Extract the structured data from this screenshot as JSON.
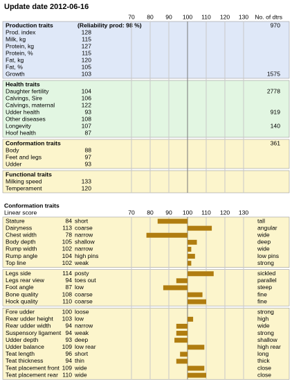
{
  "title": "Update date 2012-06-16",
  "axis": {
    "lim": [
      70,
      130
    ],
    "ticks": [
      70,
      80,
      90,
      100,
      110,
      120,
      130
    ],
    "baseline": 100
  },
  "dtrs_header": "No. of dtrs",
  "index_sections": [
    {
      "name": "Production traits",
      "note": "(Reliability prod: 98 %)",
      "dtrs": "970",
      "bg": "#dfe8f8",
      "text_color": "#1a4fa0",
      "bar_color": "#1f5f9c",
      "rows": [
        {
          "label": "Prod. index",
          "value": 128
        },
        {
          "label": "Milk, kg",
          "value": 115
        },
        {
          "label": "Protein, kg",
          "value": 127
        },
        {
          "label": "Protein, %",
          "value": 115
        },
        {
          "label": "Fat, kg",
          "value": 120
        },
        {
          "label": "Fat, %",
          "value": 105
        },
        {
          "label": "Growth",
          "value": 103,
          "dtrs": "1575"
        }
      ]
    },
    {
      "name": "Health traits",
      "bg": "#e2f6e2",
      "text_color": "#2d6a2d",
      "bar_color": "#2f7a30",
      "rows": [
        {
          "label": "Daughter fertility",
          "value": 104,
          "dtrs": "2778"
        },
        {
          "label": "Calvings, Sire",
          "value": 106
        },
        {
          "label": "Calvings, maternal",
          "value": 122
        },
        {
          "label": "Udder health",
          "value": 93,
          "dtrs": "919"
        },
        {
          "label": "Other diseases",
          "value": 108
        },
        {
          "label": "Longevity",
          "value": 107,
          "dtrs": "140"
        },
        {
          "label": "Hoof health",
          "value": 87
        }
      ]
    },
    {
      "name": "Conformation traits",
      "dtrs": "361",
      "bg": "#fcf5cc",
      "text_color": "#8b5a00",
      "bar_color": "#b07d10",
      "rows": [
        {
          "label": "Body",
          "value": 88
        },
        {
          "label": "Feet and legs",
          "value": 97
        },
        {
          "label": "Udder",
          "value": 93
        }
      ]
    },
    {
      "name": "Functional traits",
      "bg": "#fcf5cc",
      "text_color": "#8b5a00",
      "bar_color": "#b07d10",
      "rows": [
        {
          "label": "Milking speed",
          "value": 133
        },
        {
          "label": "Temperament",
          "value": 120
        }
      ]
    }
  ],
  "linear": {
    "title": "Conformation traits",
    "subtitle": "Linear score",
    "bg": "#fcf5cc",
    "text_color": "#8b5a00",
    "bar_color": "#b07d10",
    "groups": [
      [
        {
          "label": "Stature",
          "value": 84,
          "low": "short",
          "high": "tall"
        },
        {
          "label": "Dairyness",
          "value": 113,
          "low": "coarse",
          "high": "angular"
        },
        {
          "label": "Chest width",
          "value": 78,
          "low": "narrow",
          "high": "wide"
        },
        {
          "label": "Body depth",
          "value": 105,
          "low": "shallow",
          "high": "deep"
        },
        {
          "label": "Rump width",
          "value": 102,
          "low": "narrow",
          "high": "wide"
        },
        {
          "label": "Rump angle",
          "value": 104,
          "low": "high pins",
          "high": "low pins"
        },
        {
          "label": "Top line",
          "value": 102,
          "low": "weak",
          "high": "strong"
        }
      ],
      [
        {
          "label": "Legs side",
          "value": 114,
          "low": "posty",
          "high": "sickled"
        },
        {
          "label": "Legs rear view",
          "value": 94,
          "low": "toes out",
          "high": "parallel"
        },
        {
          "label": "Foot angle",
          "value": 87,
          "low": "low",
          "high": "steep"
        },
        {
          "label": "Bone quality",
          "value": 108,
          "low": "coarse",
          "high": "fine"
        },
        {
          "label": "Hock quality",
          "value": 110,
          "low": "coarse",
          "high": "fine"
        }
      ],
      [
        {
          "label": "Fore udder",
          "value": 100,
          "low": "loose",
          "high": "strong"
        },
        {
          "label": "Rear udder height",
          "value": 103,
          "low": "low",
          "high": "high"
        },
        {
          "label": "Rear udder width",
          "value": 94,
          "low": "narrow",
          "high": "wide"
        },
        {
          "label": "Suspensory ligament",
          "value": 94,
          "low": "weak",
          "high": "strong"
        },
        {
          "label": "Udder depth",
          "value": 93,
          "low": "deep",
          "high": "shallow"
        },
        {
          "label": "Udder balance",
          "value": 109,
          "low": "low rear",
          "high": "high rear"
        },
        {
          "label": "Teat length",
          "value": 96,
          "low": "short",
          "high": "long"
        },
        {
          "label": "Teat thickness",
          "value": 94,
          "low": "thin",
          "high": "thick"
        },
        {
          "label": "Teat placement front",
          "value": 109,
          "low": "wide",
          "high": "close"
        },
        {
          "label": "Teat placement rear",
          "value": 110,
          "low": "wide",
          "high": "close"
        }
      ]
    ]
  }
}
